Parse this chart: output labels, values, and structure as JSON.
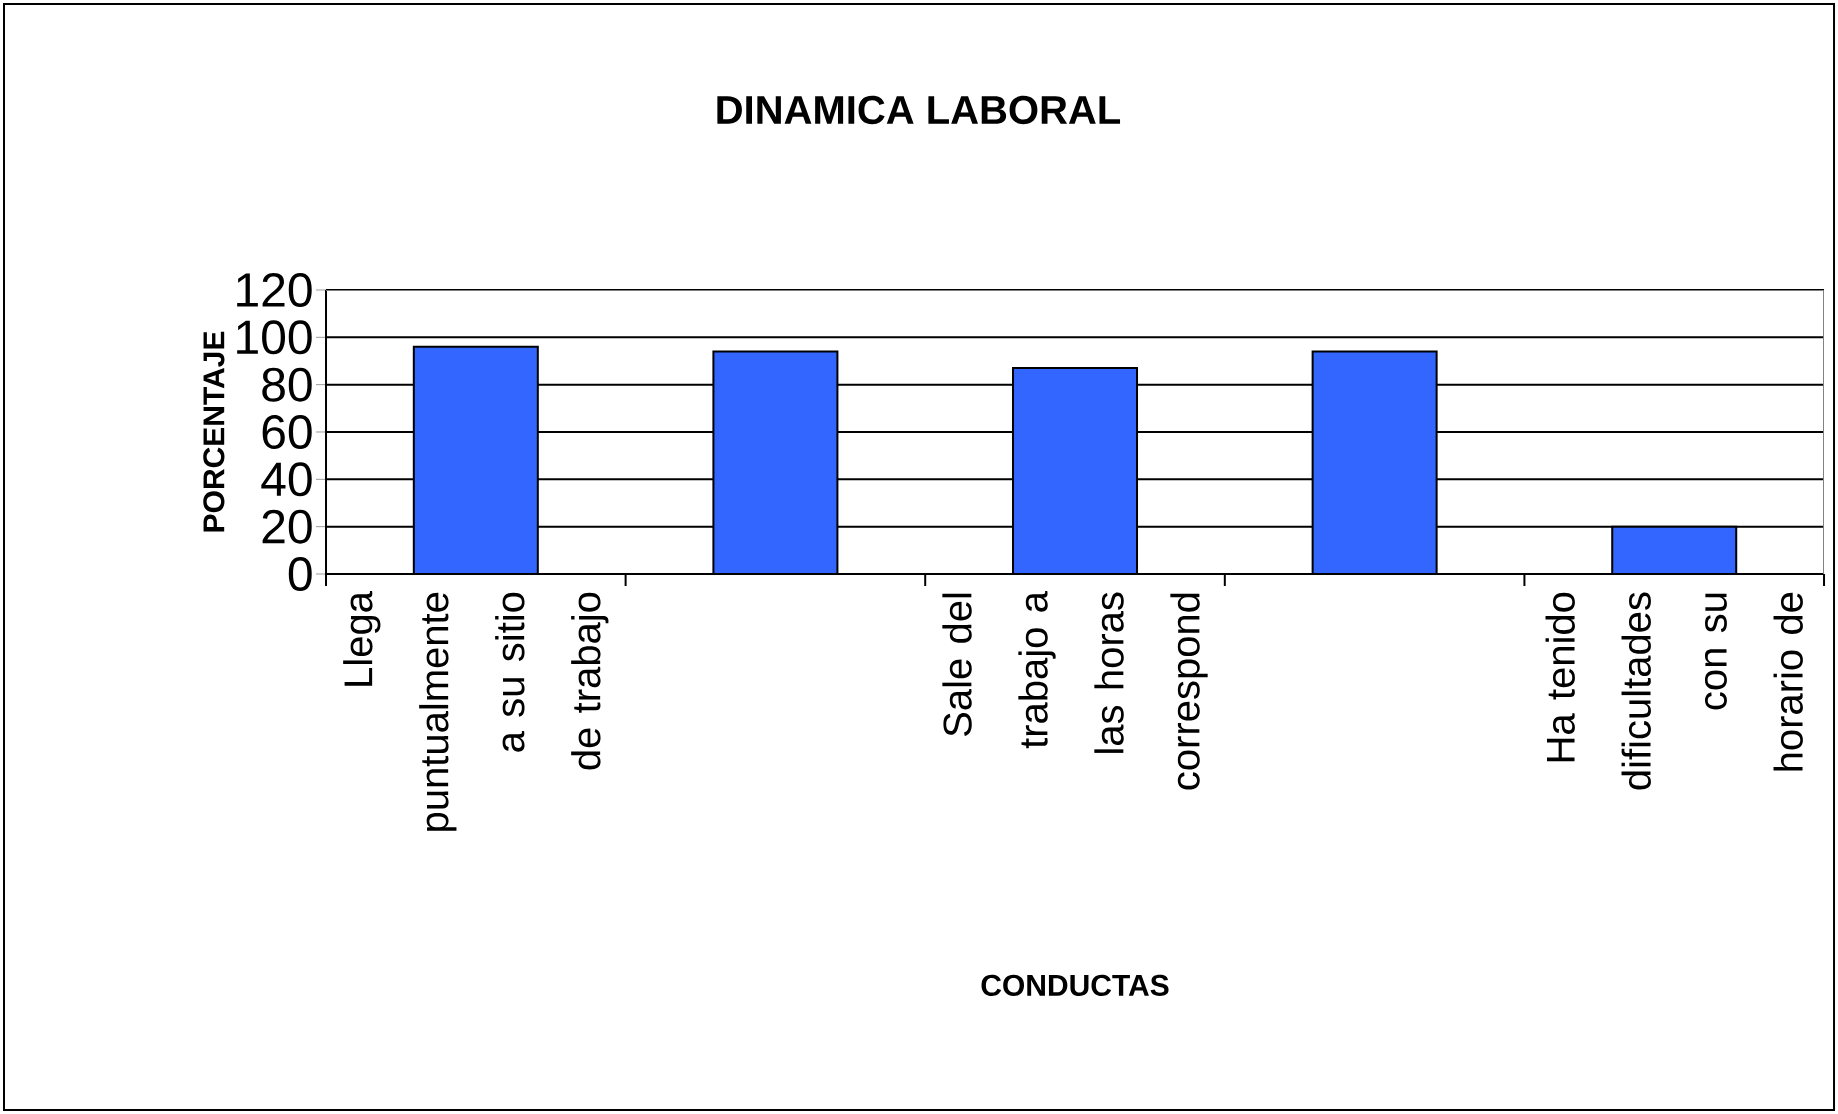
{
  "chart_data": {
    "type": "bar",
    "title": "DINAMICA LABORAL",
    "xlabel": "CONDUCTAS",
    "ylabel": "PORCENTAJE",
    "categories": [
      "Llega puntualmente a su sitio de trabajo",
      null,
      "Sale del trabajo a las horas correspond",
      null,
      "Ha tenido dificultades con su horario de"
    ],
    "values": [
      96,
      94,
      87,
      94,
      20
    ],
    "color": "#3366ff",
    "ylim": [
      0,
      120
    ],
    "yticks": [
      0,
      20,
      40,
      60,
      80,
      100,
      120
    ],
    "grid": "y"
  }
}
